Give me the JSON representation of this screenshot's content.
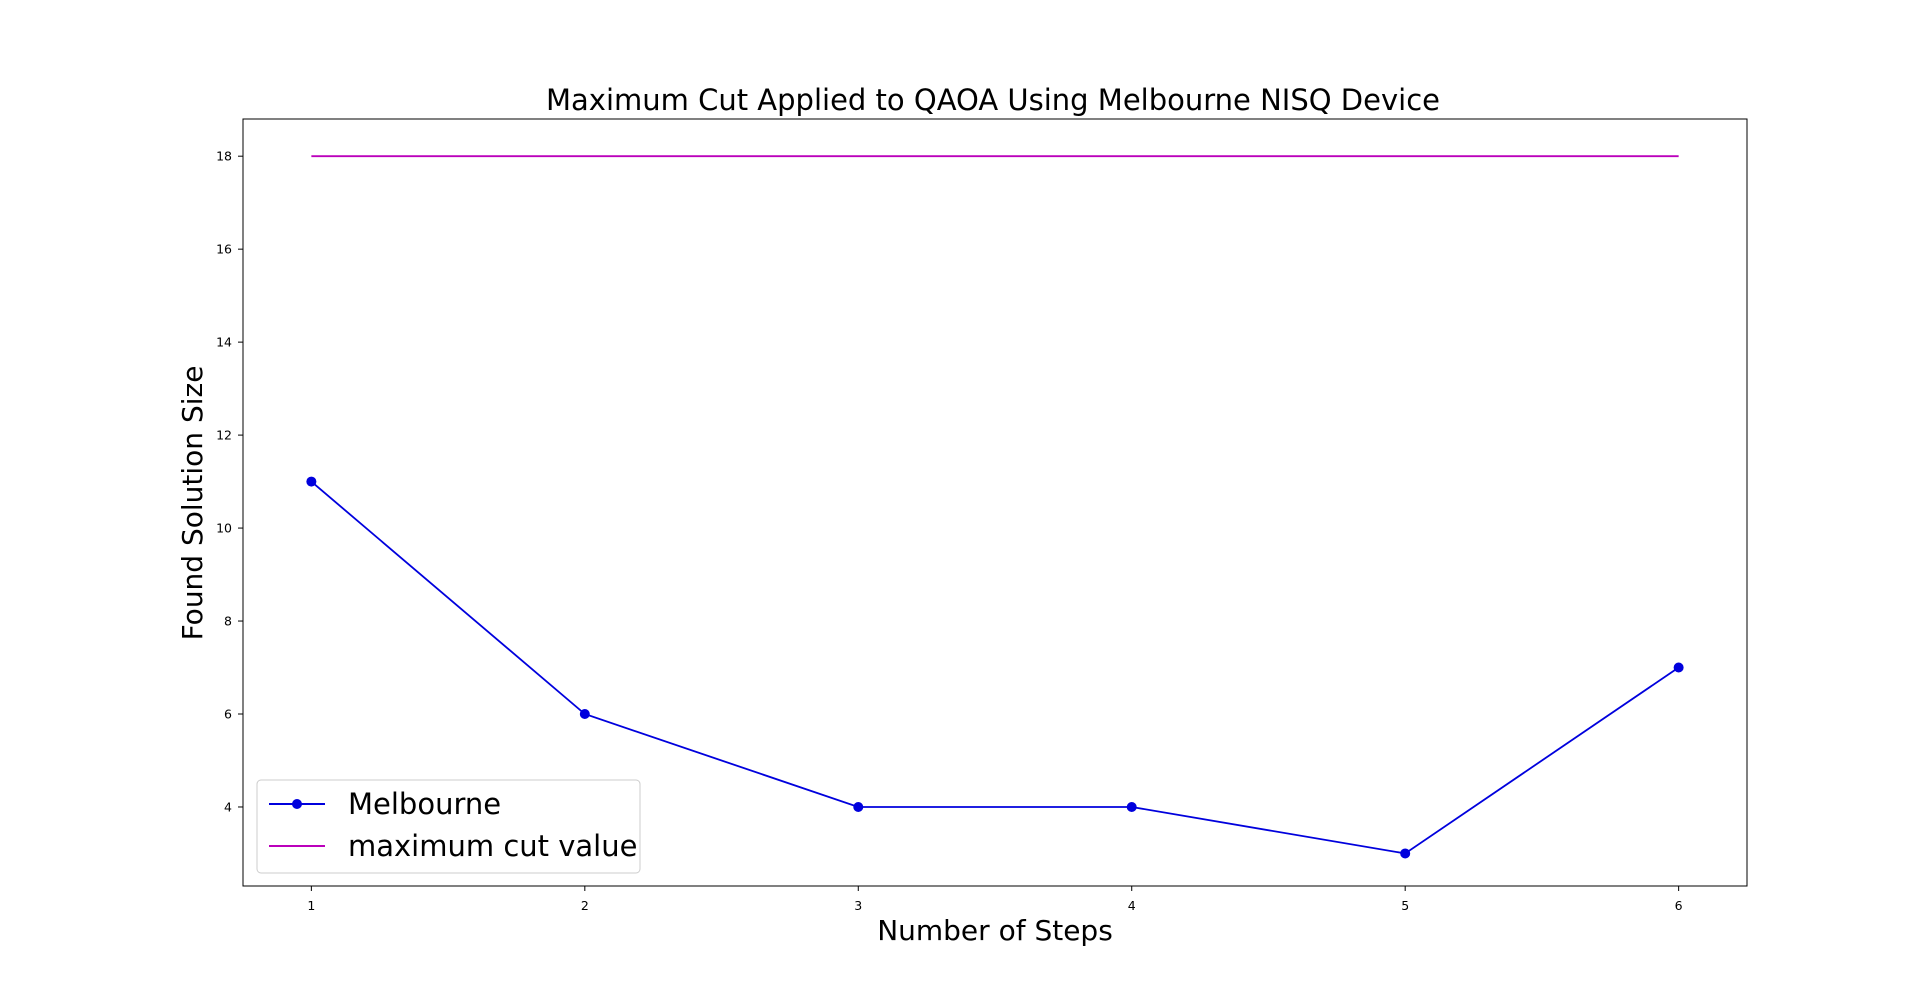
{
  "chart_data": {
    "type": "line",
    "title": "Maximum Cut Applied to QAOA Using Melbourne NISQ Device",
    "xlabel": "Number of Steps",
    "ylabel": "Found Solution Size",
    "x": [
      1,
      2,
      3,
      4,
      5,
      6
    ],
    "xticks": [
      "1",
      "2",
      "3",
      "4",
      "5",
      "6"
    ],
    "yticks": [
      "4",
      "6",
      "8",
      "10",
      "12",
      "14",
      "16",
      "18"
    ],
    "xlim": [
      0.75,
      6.25
    ],
    "ylim": [
      2.3,
      18.8
    ],
    "grid": false,
    "legend_position": "lower-left",
    "series": [
      {
        "name": "Melbourne",
        "values": [
          11,
          6,
          4,
          4,
          3,
          7
        ],
        "color": "#0000dd",
        "marker": "circle"
      },
      {
        "name": "maximum cut value",
        "values": [
          18,
          18,
          18,
          18,
          18,
          18
        ],
        "color": "#bb00bb",
        "marker": "none"
      }
    ]
  }
}
